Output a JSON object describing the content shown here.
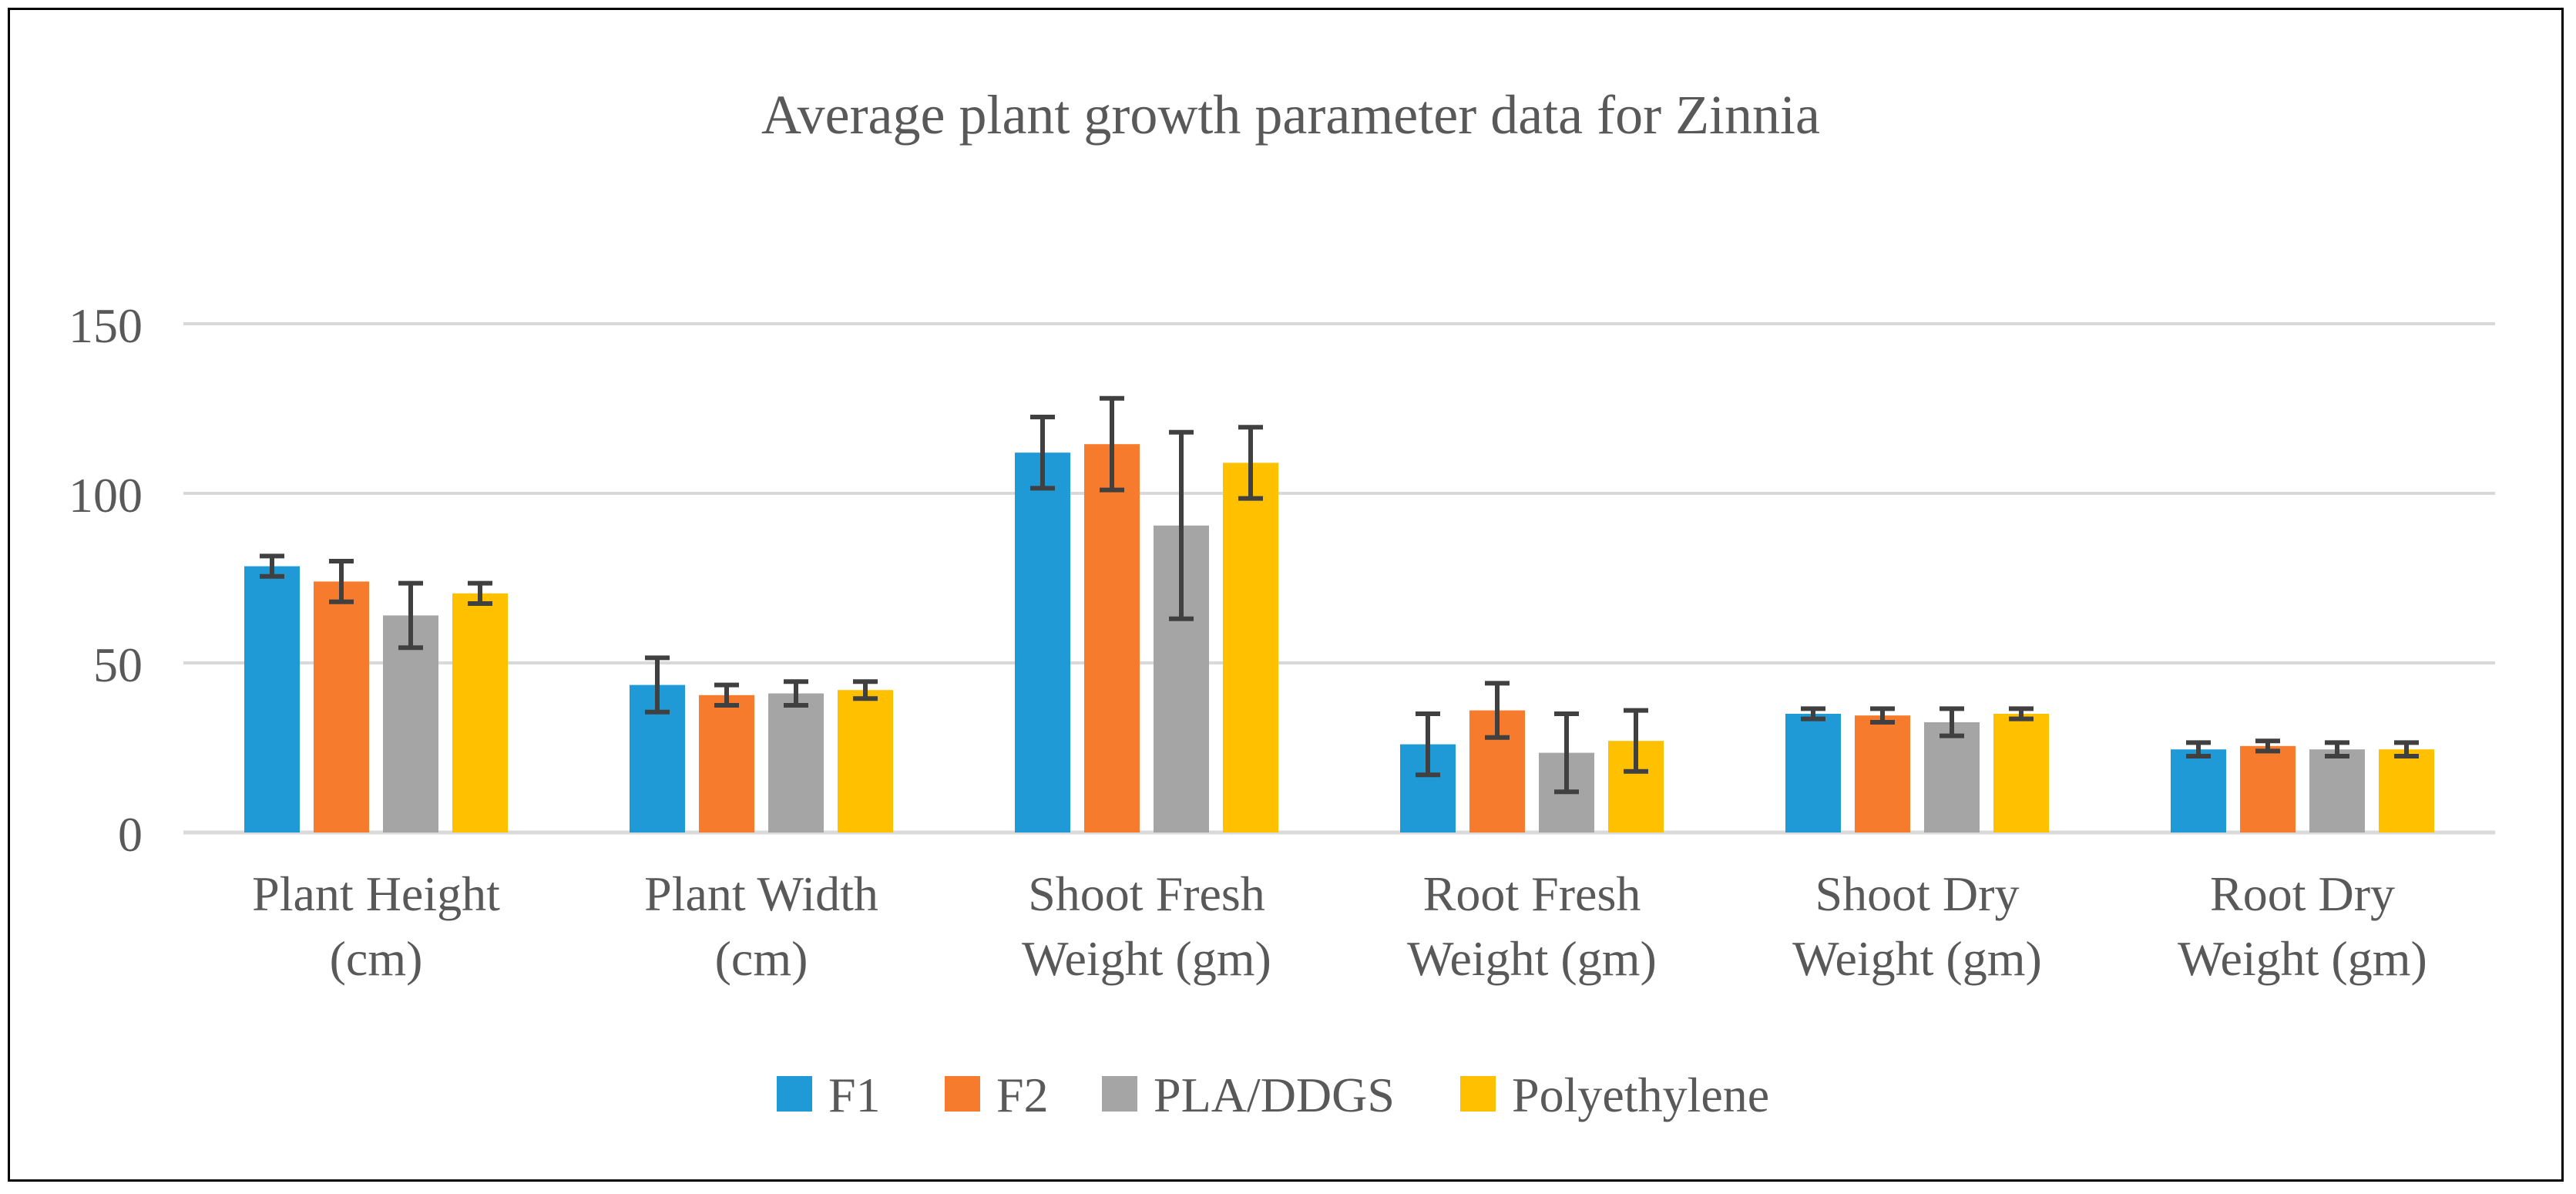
{
  "chart_data": {
    "type": "bar",
    "title": "Average plant growth parameter data for Zinnia",
    "xlabel": "",
    "ylabel": "",
    "ylim": [
      0,
      150
    ],
    "yticks": [
      "0",
      "50",
      "100",
      "150"
    ],
    "grid": true,
    "legend_position": "bottom",
    "categories": [
      [
        "Plant Height",
        "(cm)"
      ],
      [
        "Plant Width",
        "(cm)"
      ],
      [
        "Shoot Fresh",
        "Weight (gm)"
      ],
      [
        "Root Fresh",
        "Weight (gm)"
      ],
      [
        "Shoot Dry",
        "Weight (gm)"
      ],
      [
        "Root Dry",
        "Weight (gm)"
      ]
    ],
    "series": [
      {
        "name": "F1",
        "color": "#1f9ad6",
        "values": [
          78.5,
          43.5,
          112,
          26,
          35,
          24.5
        ],
        "errors": [
          3,
          8,
          10.5,
          9,
          1.5,
          2
        ]
      },
      {
        "name": "F2",
        "color": "#f77b2d",
        "values": [
          74,
          40.5,
          114.5,
          36,
          34.5,
          25.5
        ],
        "errors": [
          6,
          3,
          13.5,
          8,
          2,
          1.5
        ]
      },
      {
        "name": "PLA/DDGS",
        "color": "#a5a5a5",
        "values": [
          64,
          41,
          90.5,
          23.5,
          32.5,
          24.5
        ],
        "errors": [
          9.5,
          3.5,
          27.5,
          11.5,
          4,
          2
        ]
      },
      {
        "name": "Polyethylene",
        "color": "#ffc000",
        "values": [
          70.5,
          42,
          109,
          27,
          35,
          24.5
        ],
        "errors": [
          3,
          2.5,
          10.5,
          9,
          1.5,
          2
        ]
      }
    ]
  }
}
